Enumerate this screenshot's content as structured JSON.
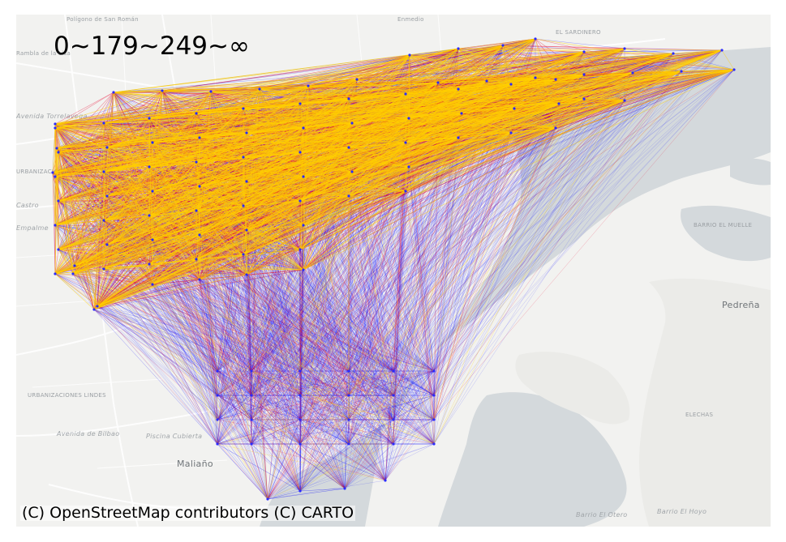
{
  "legend": {
    "title": "0~179~249~∞"
  },
  "attribution": "(C) OpenStreetMap contributors (C) CARTO",
  "basemap": {
    "land_color": "#f2f2f0",
    "water_color": "#d4d9dc",
    "road_color": "#ffffff",
    "place_labels": [
      "Polígono de San Román",
      "Enmedio",
      "EL SARDINERO",
      "Rambla de la Lisa",
      "Avenida Torrelavega",
      "URBANIZACIÓN ALTAMIRA",
      "Castro",
      "Empalme",
      "BARRIO EL MUELLE",
      "Pedreña",
      "URBANIZACIONES LINDES",
      "Avenida de Bilbao",
      "Piscina Cubierta",
      "ELECHAS",
      "Maliaño",
      "Barrio El Otero",
      "Barrio El Hoyo"
    ]
  },
  "network": {
    "colors": {
      "low": "#0000ff",
      "mid": "#e8002a",
      "high": "#ffd000"
    }
  }
}
